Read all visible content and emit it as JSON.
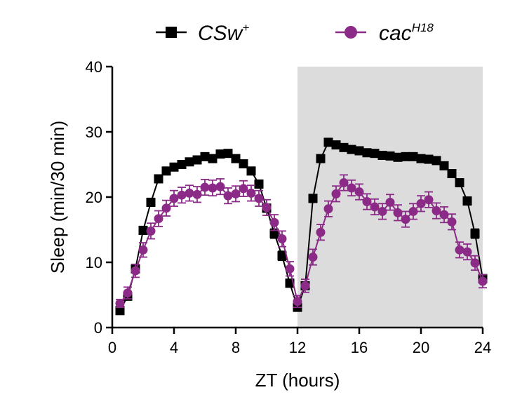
{
  "chart_data": {
    "type": "line",
    "xlabel": "ZT (hours)",
    "ylabel": "Sleep (min/30 min)",
    "xlim": [
      0,
      24
    ],
    "ylim": [
      0,
      40
    ],
    "xticks": [
      "0",
      "4",
      "8",
      "12",
      "16",
      "20",
      "24"
    ],
    "yticks": [
      "0",
      "10",
      "20",
      "30",
      "40"
    ],
    "shaded_region": {
      "x": [
        12,
        24
      ],
      "color": "#dcdcdc"
    },
    "grid": false,
    "legend_position": "top",
    "x": [
      0.5,
      1,
      1.5,
      2,
      2.5,
      3,
      3.5,
      4,
      4.5,
      5,
      5.5,
      6,
      6.5,
      7,
      7.5,
      8,
      8.5,
      9,
      9.5,
      10,
      10.5,
      11,
      11.5,
      12,
      12.5,
      13,
      13.5,
      14,
      14.5,
      15,
      15.5,
      16,
      16.5,
      17,
      17.5,
      18,
      18.5,
      19,
      19.5,
      20,
      20.5,
      21,
      21.5,
      22,
      22.5,
      23,
      23.5,
      24
    ],
    "series": [
      {
        "name_main": "CSw",
        "name_sup": "+",
        "color": "#000000",
        "marker": "square",
        "values": [
          2.6,
          4.8,
          9.0,
          14.9,
          19.2,
          22.8,
          24.0,
          24.6,
          25.0,
          25.4,
          25.7,
          26.2,
          25.9,
          26.6,
          26.7,
          25.9,
          25.1,
          24.0,
          22.0,
          18.3,
          14.4,
          11.0,
          6.8,
          3.1,
          6.4,
          19.8,
          25.9,
          28.4,
          28.0,
          27.6,
          27.3,
          27.1,
          26.8,
          26.7,
          26.4,
          26.3,
          26.1,
          26.2,
          26.2,
          25.9,
          25.8,
          25.6,
          24.8,
          23.6,
          22.2,
          19.4,
          14.4,
          7.5
        ],
        "errors": [
          0.3,
          0.4,
          0.5,
          0.6,
          0.6,
          0.5,
          0.5,
          0.5,
          0.5,
          0.5,
          0.5,
          0.5,
          0.5,
          0.5,
          0.5,
          0.5,
          0.5,
          0.5,
          0.6,
          0.6,
          0.7,
          0.7,
          0.6,
          0.4,
          0.5,
          0.6,
          0.5,
          0.4,
          0.4,
          0.4,
          0.4,
          0.4,
          0.4,
          0.4,
          0.4,
          0.4,
          0.4,
          0.4,
          0.4,
          0.4,
          0.4,
          0.4,
          0.4,
          0.5,
          0.5,
          0.6,
          0.7,
          0.6
        ]
      },
      {
        "name_main": "cac",
        "name_sup": "H18",
        "color": "#8b2a87",
        "marker": "circle",
        "values": [
          3.7,
          5.3,
          8.7,
          11.9,
          14.8,
          16.7,
          18.3,
          19.8,
          20.3,
          20.6,
          20.4,
          21.5,
          21.4,
          21.6,
          20.2,
          20.5,
          21.3,
          20.6,
          19.8,
          18.4,
          16.1,
          13.6,
          9.0,
          4.0,
          6.4,
          10.8,
          14.6,
          18.2,
          20.5,
          22.2,
          21.4,
          20.8,
          19.3,
          18.5,
          17.8,
          19.2,
          17.6,
          16.6,
          17.8,
          19.0,
          19.6,
          17.9,
          17.3,
          16.2,
          11.9,
          11.6,
          9.9,
          7.1
        ],
        "errors": [
          0.6,
          0.9,
          1.0,
          1.1,
          1.2,
          1.2,
          1.2,
          1.2,
          1.2,
          1.2,
          1.2,
          1.2,
          1.2,
          1.2,
          1.2,
          1.2,
          1.2,
          1.2,
          1.2,
          1.2,
          1.2,
          1.2,
          1.1,
          0.9,
          1.0,
          1.2,
          1.2,
          1.2,
          1.2,
          1.2,
          1.2,
          1.2,
          1.2,
          1.2,
          1.2,
          1.2,
          1.2,
          1.2,
          1.2,
          1.2,
          1.2,
          1.2,
          1.2,
          1.2,
          1.2,
          1.2,
          1.1,
          1.0
        ]
      }
    ]
  }
}
